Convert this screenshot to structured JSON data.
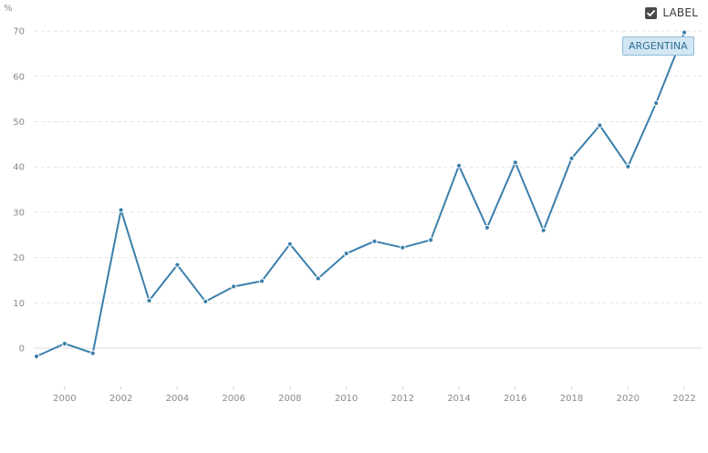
{
  "label_toggle": {
    "text": "LABEL",
    "checked": true,
    "icon": "checkmark-icon"
  },
  "colors": {
    "series": "#3b7fab",
    "grid": "#e3e3e3",
    "axis_text": "#8a8a8a"
  },
  "chart_data": {
    "type": "line",
    "unit_label": "%",
    "x": [
      1999,
      2000,
      2001,
      2002,
      2003,
      2004,
      2005,
      2006,
      2007,
      2008,
      2009,
      2010,
      2011,
      2012,
      2013,
      2014,
      2015,
      2016,
      2017,
      2018,
      2019,
      2020,
      2021,
      2022
    ],
    "x_ticks": [
      "2000",
      "2002",
      "2004",
      "2006",
      "2008",
      "2010",
      "2012",
      "2014",
      "2016",
      "2018",
      "2020",
      "2022"
    ],
    "y_ticks": [
      "0",
      "10",
      "20",
      "30",
      "40",
      "50",
      "60",
      "70"
    ],
    "xlim": [
      1999,
      2022
    ],
    "ylim": [
      -8,
      70
    ],
    "grid": true,
    "series": [
      {
        "name": "ARGENTINA",
        "values": [
          -1.8,
          1.0,
          -1.1,
          30.5,
          10.5,
          18.4,
          10.3,
          13.6,
          14.8,
          23.0,
          15.4,
          20.9,
          23.6,
          22.2,
          23.9,
          40.3,
          26.6,
          41.0,
          26.0,
          41.9,
          49.2,
          40.1,
          54.1,
          69.7
        ]
      }
    ]
  }
}
